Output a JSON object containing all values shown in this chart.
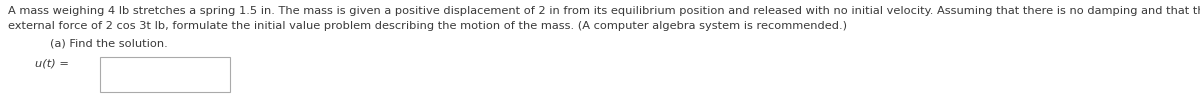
{
  "background_color": "#ffffff",
  "line1": "A mass weighing 4 lb stretches a spring 1.5 in. The mass is given a positive displacement of 2 in from its equilibrium position and released with no initial velocity. Assuming that there is no damping and that the mass is acted on by an",
  "line2": "external force of 2 cos 3t lb, formulate the initial value problem describing the motion of the mass. (A computer algebra system is recommended.)",
  "label_a": "(a) Find the solution.",
  "label_ut": "u(t) =",
  "text_color": "#3a3a3a",
  "font_size_para": 8.2,
  "font_size_label": 8.2,
  "fig_width": 12.0,
  "fig_height": 0.99,
  "dpi": 100
}
